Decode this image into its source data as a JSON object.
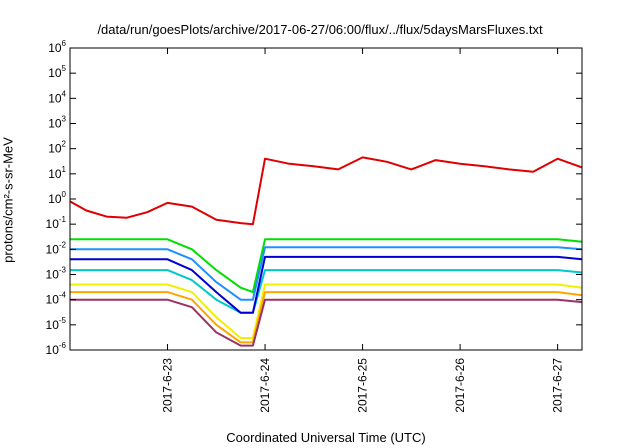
{
  "chart_data": {
    "type": "line",
    "title": "/data/run/goesPlots/archive/2017-06-27/06:00/flux/../flux/5daysMarsFluxes.txt",
    "xlabel": "Coordinated Universal Time (UTC)",
    "ylabel": "protons/cm²-s-sr-MeV",
    "yscale": "log",
    "ylim": [
      1e-06,
      1000000.0
    ],
    "y_ticks": [
      "10^-6",
      "10^-5",
      "10^-4",
      "10^-3",
      "10^-2",
      "10^-1",
      "10^0",
      "10^1",
      "10^2",
      "10^3",
      "10^4",
      "10^5",
      "10^6"
    ],
    "xlim": [
      "2017-06-22 00:00",
      "2017-06-27 06:00"
    ],
    "x_ticks": [
      "2017-6-23",
      "2017-6-24",
      "2017-6-25",
      "2017-6-26",
      "2017-6-27"
    ],
    "grid": false,
    "legend": "none",
    "series": [
      {
        "color": "#e00000",
        "x": [
          "2017-06-22 00:00",
          "2017-06-22 04:00",
          "2017-06-22 09:00",
          "2017-06-22 14:00",
          "2017-06-22 19:00",
          "2017-06-23 00:00",
          "2017-06-23 06:00",
          "2017-06-23 12:00",
          "2017-06-23 18:00",
          "2017-06-23 21:00",
          "2017-06-24 00:00",
          "2017-06-24 06:00",
          "2017-06-24 12:00",
          "2017-06-24 18:00",
          "2017-06-25 00:00",
          "2017-06-25 06:00",
          "2017-06-25 12:00",
          "2017-06-25 18:00",
          "2017-06-26 00:00",
          "2017-06-26 06:00",
          "2017-06-26 12:00",
          "2017-06-26 18:00",
          "2017-06-27 00:00",
          "2017-06-27 06:00"
        ],
        "y": [
          0.8,
          0.35,
          0.2,
          0.18,
          0.3,
          0.7,
          0.5,
          0.15,
          0.11,
          0.1,
          40,
          25,
          20,
          15,
          45,
          30,
          15,
          35,
          25,
          20,
          15,
          12,
          40,
          18
        ]
      },
      {
        "color": "#00e000",
        "x": [
          "2017-06-22 00:00",
          "2017-06-23 00:00",
          "2017-06-23 06:00",
          "2017-06-23 12:00",
          "2017-06-23 18:00",
          "2017-06-23 21:00",
          "2017-06-24 00:00",
          "2017-06-25 00:00",
          "2017-06-26 00:00",
          "2017-06-27 00:00",
          "2017-06-27 06:00"
        ],
        "y": [
          0.025,
          0.025,
          0.01,
          0.0015,
          0.0003,
          0.0002,
          0.025,
          0.025,
          0.025,
          0.025,
          0.02
        ]
      },
      {
        "color": "#00c8c8",
        "x": [
          "2017-06-22 00:00",
          "2017-06-23 00:00",
          "2017-06-23 06:00",
          "2017-06-23 12:00",
          "2017-06-23 18:00",
          "2017-06-23 21:00",
          "2017-06-24 00:00",
          "2017-06-25 00:00",
          "2017-06-26 00:00",
          "2017-06-27 00:00",
          "2017-06-27 06:00"
        ],
        "y": [
          0.0015,
          0.0015,
          0.0006,
          0.0001,
          3e-05,
          3e-05,
          0.0015,
          0.0015,
          0.0015,
          0.0015,
          0.0012
        ]
      },
      {
        "color": "#1e90ff",
        "x": [
          "2017-06-22 00:00",
          "2017-06-23 00:00",
          "2017-06-23 06:00",
          "2017-06-23 12:00",
          "2017-06-23 18:00",
          "2017-06-23 21:00",
          "2017-06-24 00:00",
          "2017-06-25 00:00",
          "2017-06-26 00:00",
          "2017-06-27 00:00",
          "2017-06-27 06:00"
        ],
        "y": [
          0.01,
          0.01,
          0.004,
          0.0005,
          0.0001,
          0.0001,
          0.012,
          0.012,
          0.012,
          0.012,
          0.01
        ]
      },
      {
        "color": "#0000d0",
        "x": [
          "2017-06-22 00:00",
          "2017-06-23 00:00",
          "2017-06-23 06:00",
          "2017-06-23 12:00",
          "2017-06-23 18:00",
          "2017-06-23 21:00",
          "2017-06-24 00:00",
          "2017-06-25 00:00",
          "2017-06-26 00:00",
          "2017-06-27 00:00",
          "2017-06-27 06:00"
        ],
        "y": [
          0.004,
          0.004,
          0.0015,
          0.0002,
          3e-05,
          3e-05,
          0.005,
          0.005,
          0.005,
          0.005,
          0.004
        ]
      },
      {
        "color": "#f0f000",
        "x": [
          "2017-06-22 00:00",
          "2017-06-23 00:00",
          "2017-06-23 06:00",
          "2017-06-23 12:00",
          "2017-06-23 18:00",
          "2017-06-23 21:00",
          "2017-06-24 00:00",
          "2017-06-25 00:00",
          "2017-06-26 00:00",
          "2017-06-27 00:00",
          "2017-06-27 06:00"
        ],
        "y": [
          0.0004,
          0.0004,
          0.0002,
          2e-05,
          3e-06,
          3e-06,
          0.0004,
          0.0004,
          0.0004,
          0.0004,
          0.0003
        ]
      },
      {
        "color": "#ffa500",
        "x": [
          "2017-06-22 00:00",
          "2017-06-23 00:00",
          "2017-06-23 06:00",
          "2017-06-23 12:00",
          "2017-06-23 18:00",
          "2017-06-23 21:00",
          "2017-06-24 00:00",
          "2017-06-25 00:00",
          "2017-06-26 00:00",
          "2017-06-27 00:00",
          "2017-06-27 06:00"
        ],
        "y": [
          0.0002,
          0.0002,
          0.0001,
          1e-05,
          2e-06,
          2e-06,
          0.0002,
          0.0002,
          0.0002,
          0.0002,
          0.00015
        ]
      },
      {
        "color": "#993366",
        "x": [
          "2017-06-22 00:00",
          "2017-06-23 00:00",
          "2017-06-23 06:00",
          "2017-06-23 12:00",
          "2017-06-23 18:00",
          "2017-06-23 21:00",
          "2017-06-24 00:00",
          "2017-06-25 00:00",
          "2017-06-26 00:00",
          "2017-06-27 00:00",
          "2017-06-27 06:00"
        ],
        "y": [
          0.0001,
          0.0001,
          5e-05,
          5e-06,
          1.5e-06,
          1.5e-06,
          0.0001,
          0.0001,
          0.0001,
          0.0001,
          8e-05
        ]
      }
    ]
  }
}
